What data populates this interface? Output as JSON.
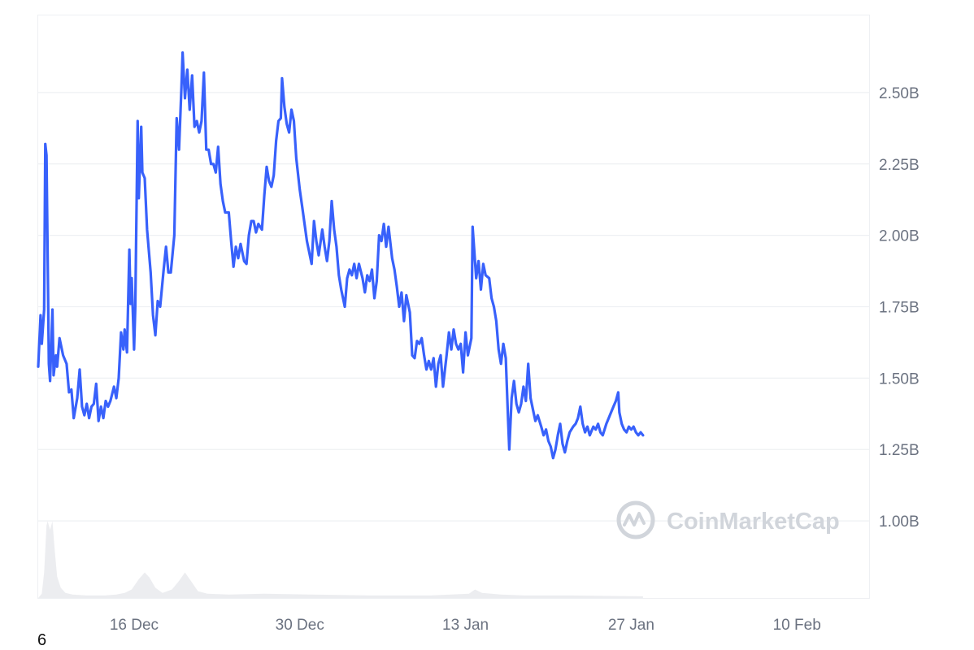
{
  "chart_data": {
    "type": "line",
    "y_unit_suffix": "B",
    "ylim": [
      0.73,
      2.77
    ],
    "y_ticks": [
      {
        "value": 1.0,
        "label": "1.00B"
      },
      {
        "value": 1.25,
        "label": "1.25B"
      },
      {
        "value": 1.5,
        "label": "1.50B"
      },
      {
        "value": 1.75,
        "label": "1.75B"
      },
      {
        "value": 2.0,
        "label": "2.00B"
      },
      {
        "value": 2.25,
        "label": "2.25B"
      },
      {
        "value": 2.5,
        "label": "2.50B"
      }
    ],
    "x_ticks": [
      {
        "day": 5,
        "label": "16 Dec"
      },
      {
        "day": 19,
        "label": "30 Dec"
      },
      {
        "day": 33,
        "label": "13 Jan"
      },
      {
        "day": 47,
        "label": "27 Jan"
      },
      {
        "day": 61,
        "label": "10 Feb"
      }
    ],
    "x_range_days": [
      -3.1,
      67.1
    ],
    "grid": true,
    "series": [
      {
        "color": "#3861fb",
        "points": [
          [
            -3.1,
            1.54
          ],
          [
            -2.9,
            1.72
          ],
          [
            -2.8,
            1.62
          ],
          [
            -2.6,
            1.74
          ],
          [
            -2.5,
            2.32
          ],
          [
            -2.4,
            2.28
          ],
          [
            -2.2,
            1.55
          ],
          [
            -2.1,
            1.49
          ],
          [
            -1.9,
            1.74
          ],
          [
            -1.8,
            1.51
          ],
          [
            -1.6,
            1.58
          ],
          [
            -1.5,
            1.54
          ],
          [
            -1.3,
            1.64
          ],
          [
            -1.0,
            1.58
          ],
          [
            -0.7,
            1.55
          ],
          [
            -0.5,
            1.45
          ],
          [
            -0.3,
            1.46
          ],
          [
            -0.1,
            1.36
          ],
          [
            0.2,
            1.43
          ],
          [
            0.4,
            1.53
          ],
          [
            0.6,
            1.4
          ],
          [
            0.8,
            1.37
          ],
          [
            1.0,
            1.41
          ],
          [
            1.2,
            1.36
          ],
          [
            1.4,
            1.4
          ],
          [
            1.6,
            1.41
          ],
          [
            1.8,
            1.48
          ],
          [
            2.0,
            1.35
          ],
          [
            2.2,
            1.4
          ],
          [
            2.4,
            1.36
          ],
          [
            2.6,
            1.42
          ],
          [
            2.8,
            1.4
          ],
          [
            3.0,
            1.42
          ],
          [
            3.3,
            1.47
          ],
          [
            3.5,
            1.43
          ],
          [
            3.7,
            1.5
          ],
          [
            3.9,
            1.66
          ],
          [
            4.1,
            1.6
          ],
          [
            4.2,
            1.67
          ],
          [
            4.4,
            1.59
          ],
          [
            4.6,
            1.95
          ],
          [
            4.7,
            1.76
          ],
          [
            4.8,
            1.85
          ],
          [
            5.0,
            1.6
          ],
          [
            5.1,
            1.75
          ],
          [
            5.3,
            2.4
          ],
          [
            5.4,
            2.13
          ],
          [
            5.6,
            2.38
          ],
          [
            5.7,
            2.22
          ],
          [
            5.9,
            2.2
          ],
          [
            6.1,
            2.02
          ],
          [
            6.4,
            1.87
          ],
          [
            6.6,
            1.72
          ],
          [
            6.8,
            1.65
          ],
          [
            7.0,
            1.77
          ],
          [
            7.2,
            1.75
          ],
          [
            7.5,
            1.88
          ],
          [
            7.7,
            1.96
          ],
          [
            7.9,
            1.87
          ],
          [
            8.1,
            1.87
          ],
          [
            8.4,
            2.0
          ],
          [
            8.6,
            2.41
          ],
          [
            8.8,
            2.3
          ],
          [
            9.0,
            2.52
          ],
          [
            9.1,
            2.64
          ],
          [
            9.3,
            2.48
          ],
          [
            9.5,
            2.58
          ],
          [
            9.7,
            2.44
          ],
          [
            9.9,
            2.56
          ],
          [
            10.1,
            2.38
          ],
          [
            10.3,
            2.4
          ],
          [
            10.5,
            2.36
          ],
          [
            10.7,
            2.4
          ],
          [
            10.9,
            2.57
          ],
          [
            11.1,
            2.3
          ],
          [
            11.3,
            2.3
          ],
          [
            11.5,
            2.25
          ],
          [
            11.7,
            2.25
          ],
          [
            11.9,
            2.22
          ],
          [
            12.1,
            2.31
          ],
          [
            12.3,
            2.18
          ],
          [
            12.5,
            2.12
          ],
          [
            12.7,
            2.08
          ],
          [
            13.0,
            2.08
          ],
          [
            13.2,
            1.98
          ],
          [
            13.4,
            1.89
          ],
          [
            13.6,
            1.96
          ],
          [
            13.8,
            1.92
          ],
          [
            14.0,
            1.97
          ],
          [
            14.3,
            1.91
          ],
          [
            14.5,
            1.9
          ],
          [
            14.7,
            2.0
          ],
          [
            14.9,
            2.05
          ],
          [
            15.1,
            2.05
          ],
          [
            15.3,
            2.01
          ],
          [
            15.5,
            2.04
          ],
          [
            15.8,
            2.02
          ],
          [
            16.0,
            2.14
          ],
          [
            16.2,
            2.24
          ],
          [
            16.4,
            2.19
          ],
          [
            16.6,
            2.17
          ],
          [
            16.8,
            2.21
          ],
          [
            17.0,
            2.33
          ],
          [
            17.2,
            2.4
          ],
          [
            17.4,
            2.41
          ],
          [
            17.5,
            2.55
          ],
          [
            17.7,
            2.45
          ],
          [
            17.9,
            2.39
          ],
          [
            18.1,
            2.36
          ],
          [
            18.3,
            2.44
          ],
          [
            18.5,
            2.4
          ],
          [
            18.7,
            2.27
          ],
          [
            19.0,
            2.16
          ],
          [
            19.2,
            2.1
          ],
          [
            19.4,
            2.04
          ],
          [
            19.6,
            1.98
          ],
          [
            19.8,
            1.94
          ],
          [
            20.0,
            1.9
          ],
          [
            20.2,
            2.05
          ],
          [
            20.4,
            1.98
          ],
          [
            20.6,
            1.93
          ],
          [
            20.9,
            2.02
          ],
          [
            21.1,
            1.96
          ],
          [
            21.3,
            1.91
          ],
          [
            21.5,
            1.98
          ],
          [
            21.7,
            2.12
          ],
          [
            21.9,
            2.02
          ],
          [
            22.1,
            1.96
          ],
          [
            22.3,
            1.86
          ],
          [
            22.5,
            1.81
          ],
          [
            22.8,
            1.75
          ],
          [
            23.0,
            1.85
          ],
          [
            23.2,
            1.88
          ],
          [
            23.4,
            1.86
          ],
          [
            23.6,
            1.9
          ],
          [
            23.8,
            1.85
          ],
          [
            24.0,
            1.9
          ],
          [
            24.3,
            1.85
          ],
          [
            24.5,
            1.8
          ],
          [
            24.7,
            1.86
          ],
          [
            24.9,
            1.84
          ],
          [
            25.1,
            1.88
          ],
          [
            25.3,
            1.78
          ],
          [
            25.5,
            1.84
          ],
          [
            25.7,
            2.0
          ],
          [
            25.9,
            1.98
          ],
          [
            26.1,
            2.04
          ],
          [
            26.3,
            1.96
          ],
          [
            26.5,
            2.03
          ],
          [
            26.8,
            1.92
          ],
          [
            27.0,
            1.88
          ],
          [
            27.2,
            1.82
          ],
          [
            27.4,
            1.75
          ],
          [
            27.6,
            1.8
          ],
          [
            27.8,
            1.7
          ],
          [
            28.0,
            1.79
          ],
          [
            28.3,
            1.73
          ],
          [
            28.5,
            1.58
          ],
          [
            28.7,
            1.57
          ],
          [
            28.9,
            1.63
          ],
          [
            29.1,
            1.62
          ],
          [
            29.3,
            1.64
          ],
          [
            29.5,
            1.58
          ],
          [
            29.7,
            1.53
          ],
          [
            29.9,
            1.56
          ],
          [
            30.1,
            1.53
          ],
          [
            30.3,
            1.57
          ],
          [
            30.5,
            1.47
          ],
          [
            30.7,
            1.55
          ],
          [
            30.9,
            1.58
          ],
          [
            31.1,
            1.47
          ],
          [
            31.4,
            1.58
          ],
          [
            31.6,
            1.66
          ],
          [
            31.8,
            1.6
          ],
          [
            32.0,
            1.67
          ],
          [
            32.2,
            1.62
          ],
          [
            32.4,
            1.6
          ],
          [
            32.6,
            1.62
          ],
          [
            32.8,
            1.52
          ],
          [
            33.0,
            1.66
          ],
          [
            33.2,
            1.58
          ],
          [
            33.5,
            1.64
          ],
          [
            33.6,
            2.03
          ],
          [
            33.9,
            1.85
          ],
          [
            34.1,
            1.91
          ],
          [
            34.3,
            1.81
          ],
          [
            34.5,
            1.9
          ],
          [
            34.7,
            1.86
          ],
          [
            35.0,
            1.85
          ],
          [
            35.2,
            1.78
          ],
          [
            35.4,
            1.75
          ],
          [
            35.6,
            1.7
          ],
          [
            35.8,
            1.6
          ],
          [
            36.0,
            1.55
          ],
          [
            36.2,
            1.62
          ],
          [
            36.4,
            1.57
          ],
          [
            36.6,
            1.35
          ],
          [
            36.7,
            1.25
          ],
          [
            36.9,
            1.43
          ],
          [
            37.1,
            1.49
          ],
          [
            37.3,
            1.41
          ],
          [
            37.5,
            1.38
          ],
          [
            37.7,
            1.41
          ],
          [
            37.9,
            1.47
          ],
          [
            38.1,
            1.42
          ],
          [
            38.3,
            1.55
          ],
          [
            38.5,
            1.43
          ],
          [
            38.7,
            1.39
          ],
          [
            38.9,
            1.35
          ],
          [
            39.1,
            1.37
          ],
          [
            39.4,
            1.33
          ],
          [
            39.6,
            1.3
          ],
          [
            39.8,
            1.32
          ],
          [
            40.0,
            1.28
          ],
          [
            40.2,
            1.26
          ],
          [
            40.4,
            1.22
          ],
          [
            40.6,
            1.25
          ],
          [
            40.8,
            1.3
          ],
          [
            41.0,
            1.34
          ],
          [
            41.2,
            1.27
          ],
          [
            41.4,
            1.24
          ],
          [
            41.6,
            1.28
          ],
          [
            41.8,
            1.31
          ],
          [
            42.1,
            1.33
          ],
          [
            42.3,
            1.34
          ],
          [
            42.5,
            1.36
          ],
          [
            42.7,
            1.4
          ],
          [
            42.9,
            1.34
          ],
          [
            43.1,
            1.31
          ],
          [
            43.3,
            1.33
          ],
          [
            43.5,
            1.3
          ],
          [
            43.8,
            1.33
          ],
          [
            44.0,
            1.32
          ],
          [
            44.2,
            1.34
          ],
          [
            44.4,
            1.31
          ],
          [
            44.6,
            1.3
          ],
          [
            44.9,
            1.34
          ],
          [
            45.1,
            1.36
          ],
          [
            45.3,
            1.38
          ],
          [
            45.5,
            1.4
          ],
          [
            45.7,
            1.42
          ],
          [
            45.9,
            1.45
          ],
          [
            46.0,
            1.38
          ],
          [
            46.2,
            1.34
          ],
          [
            46.4,
            1.32
          ],
          [
            46.6,
            1.31
          ],
          [
            46.8,
            1.33
          ],
          [
            47.0,
            1.32
          ],
          [
            47.2,
            1.33
          ],
          [
            47.4,
            1.31
          ],
          [
            47.6,
            1.3
          ],
          [
            47.8,
            1.31
          ],
          [
            48.0,
            1.3
          ]
        ]
      }
    ],
    "volume": [
      [
        -3.1,
        0.0
      ],
      [
        -2.8,
        0.05
      ],
      [
        -2.6,
        0.3
      ],
      [
        -2.4,
        0.85
      ],
      [
        -2.3,
        0.9
      ],
      [
        -2.1,
        0.8
      ],
      [
        -1.9,
        0.9
      ],
      [
        -1.7,
        0.55
      ],
      [
        -1.5,
        0.25
      ],
      [
        -1.2,
        0.12
      ],
      [
        -0.8,
        0.06
      ],
      [
        -0.2,
        0.04
      ],
      [
        1.0,
        0.03
      ],
      [
        2.5,
        0.03
      ],
      [
        3.5,
        0.04
      ],
      [
        4.2,
        0.06
      ],
      [
        4.8,
        0.1
      ],
      [
        5.4,
        0.22
      ],
      [
        5.9,
        0.3
      ],
      [
        6.3,
        0.24
      ],
      [
        6.8,
        0.12
      ],
      [
        7.4,
        0.06
      ],
      [
        8.2,
        0.1
      ],
      [
        8.8,
        0.2
      ],
      [
        9.3,
        0.3
      ],
      [
        9.8,
        0.2
      ],
      [
        10.4,
        0.08
      ],
      [
        11.2,
        0.05
      ],
      [
        13.0,
        0.04
      ],
      [
        16.0,
        0.05
      ],
      [
        20.0,
        0.04
      ],
      [
        25.0,
        0.03
      ],
      [
        30.0,
        0.03
      ],
      [
        33.3,
        0.05
      ],
      [
        33.8,
        0.1
      ],
      [
        34.4,
        0.06
      ],
      [
        36.0,
        0.04
      ],
      [
        38.0,
        0.03
      ],
      [
        42.0,
        0.03
      ],
      [
        48.0,
        0.02
      ]
    ]
  },
  "watermark": {
    "text": "CoinMarketCap",
    "icon": "coinmarketcap-logo-icon"
  },
  "stray_text": "6"
}
